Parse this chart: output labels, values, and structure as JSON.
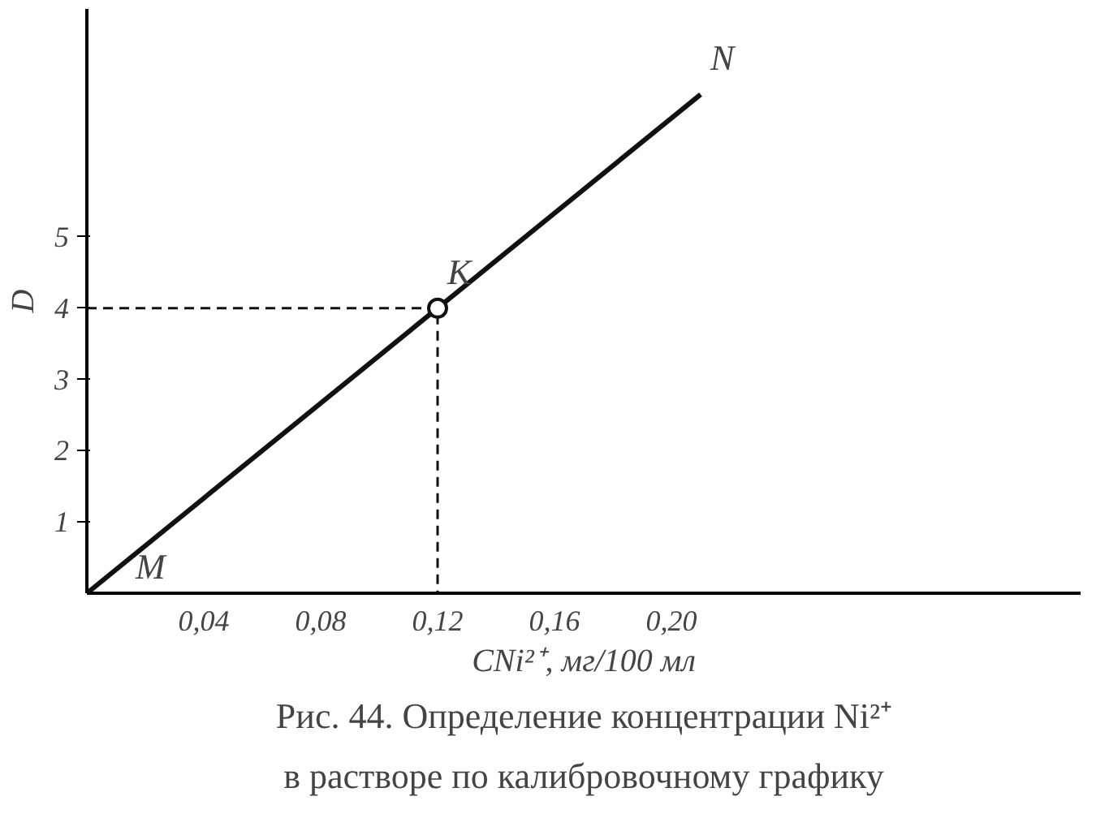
{
  "chart_data": {
    "type": "line",
    "xlabel": "CNi²⁺, мг/100 мл",
    "ylabel": "D",
    "series": [
      {
        "x": [
          0,
          0.21
        ],
        "values": [
          0,
          7
        ],
        "color": "#111111",
        "line_style": "solid",
        "marker": "none"
      },
      {
        "type": "line",
        "x": [
          0,
          0.12,
          0.12
        ],
        "values": [
          4,
          4,
          0
        ],
        "color": "#111111",
        "line_style": "dashed",
        "marker": "none"
      },
      {
        "type": "scatter",
        "x": [
          0.12
        ],
        "values": [
          4
        ],
        "color": "#111111",
        "marker": "circle"
      }
    ],
    "xlim": [
      0,
      0.34
    ],
    "ylim": [
      0,
      8.2
    ],
    "xticks": [
      {
        "value": 0.04,
        "label": "0,04"
      },
      {
        "value": 0.08,
        "label": "0,08"
      },
      {
        "value": 0.12,
        "label": "0,12"
      },
      {
        "value": 0.16,
        "label": "0,16"
      },
      {
        "value": 0.2,
        "label": "0,20"
      }
    ],
    "yticks": [
      1,
      2,
      3,
      4,
      5
    ],
    "grid": false,
    "annotations": [
      {
        "text": "M",
        "x": 0,
        "y": 0
      },
      {
        "text": "K",
        "x": 0.12,
        "y": 4
      },
      {
        "text": "N",
        "x": 0.21,
        "y": 7
      },
      "Рис. 44. Определение концентрации Ni²⁺ в растворе по калибровочному графику"
    ]
  }
}
